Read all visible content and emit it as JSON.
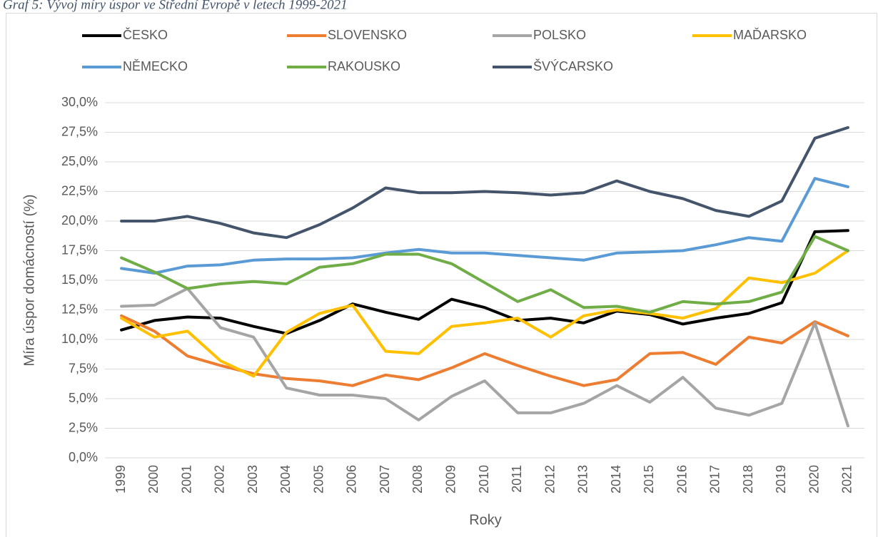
{
  "chart_data": {
    "type": "line",
    "title": "Graf 5: Vývoj míry úspor ve Střední Evropě v letech 1999-2021",
    "x_label": "Roky",
    "y_label": "Míra úspor domácností (%)",
    "categories": [
      "1999",
      "2000",
      "2001",
      "2002",
      "2003",
      "2004",
      "2005",
      "2006",
      "2007",
      "2008",
      "2009",
      "2010",
      "2011",
      "2012",
      "2013",
      "2014",
      "2015",
      "2016",
      "2017",
      "2018",
      "2019",
      "2020",
      "2021"
    ],
    "ylim": [
      0,
      30
    ],
    "yticks": [
      {
        "value": 0,
        "label": "0,0%"
      },
      {
        "value": 2.5,
        "label": "2,5%"
      },
      {
        "value": 5,
        "label": "5,0%"
      },
      {
        "value": 7.5,
        "label": "7,5%"
      },
      {
        "value": 10,
        "label": "10,0%"
      },
      {
        "value": 12.5,
        "label": "12,5%"
      },
      {
        "value": 15,
        "label": "15,0%"
      },
      {
        "value": 17.5,
        "label": "17,5%"
      },
      {
        "value": 20,
        "label": "20,0%"
      },
      {
        "value": 22.5,
        "label": "22,5%"
      },
      {
        "value": 25,
        "label": "25,0%"
      },
      {
        "value": 27.5,
        "label": "27,5%"
      },
      {
        "value": 30,
        "label": "30,0%"
      }
    ],
    "grid": true,
    "legend": "top",
    "series": [
      {
        "name": "ČESKO",
        "color": "#000000",
        "values": [
          10.8,
          11.6,
          11.9,
          11.8,
          11.1,
          10.5,
          11.6,
          13.0,
          12.3,
          11.7,
          13.4,
          12.7,
          11.6,
          11.8,
          11.4,
          12.4,
          12.1,
          11.3,
          11.8,
          12.2,
          13.1,
          19.1,
          19.2
        ]
      },
      {
        "name": "SLOVENSKO",
        "color": "#ed7d31",
        "values": [
          12.0,
          10.7,
          8.6,
          7.8,
          7.1,
          6.7,
          6.5,
          6.1,
          7.0,
          6.6,
          7.6,
          8.8,
          7.8,
          6.9,
          6.1,
          6.6,
          8.8,
          8.9,
          7.9,
          10.2,
          9.7,
          11.5,
          10.3
        ]
      },
      {
        "name": "POLSKO",
        "color": "#a5a5a5",
        "values": [
          12.8,
          12.9,
          14.3,
          11.0,
          10.2,
          5.9,
          5.3,
          5.3,
          5.0,
          3.2,
          5.2,
          6.5,
          3.8,
          3.8,
          4.6,
          6.1,
          4.7,
          6.8,
          4.2,
          3.6,
          4.6,
          11.4,
          2.7
        ]
      },
      {
        "name": "MAĎARSKO",
        "color": "#ffc000",
        "values": [
          11.8,
          10.2,
          10.7,
          8.2,
          6.9,
          10.6,
          12.2,
          12.9,
          9.0,
          8.8,
          11.1,
          11.4,
          11.8,
          10.2,
          12.0,
          12.5,
          12.2,
          11.8,
          12.6,
          15.2,
          14.8,
          15.6,
          17.5
        ]
      },
      {
        "name": "NĚMECKO",
        "color": "#5b9bd5",
        "values": [
          16.0,
          15.6,
          16.2,
          16.3,
          16.7,
          16.8,
          16.8,
          16.9,
          17.3,
          17.6,
          17.3,
          17.3,
          17.1,
          16.9,
          16.7,
          17.3,
          17.4,
          17.5,
          18.0,
          18.6,
          18.3,
          23.6,
          22.9
        ]
      },
      {
        "name": "RAKOUSKO",
        "color": "#70ad47",
        "values": [
          16.9,
          15.7,
          14.3,
          14.7,
          14.9,
          14.7,
          16.1,
          16.4,
          17.2,
          17.2,
          16.4,
          14.8,
          13.2,
          14.2,
          12.7,
          12.8,
          12.3,
          13.2,
          13.0,
          13.2,
          14.0,
          18.7,
          17.5
        ]
      },
      {
        "name": "ŠVÝCARSKO",
        "color": "#44546a",
        "values": [
          20.0,
          20.0,
          20.4,
          19.8,
          19.0,
          18.6,
          19.7,
          21.1,
          22.8,
          22.4,
          22.4,
          22.5,
          22.4,
          22.2,
          22.4,
          23.4,
          22.5,
          21.9,
          20.9,
          20.4,
          21.7,
          27.0,
          27.9
        ]
      }
    ]
  }
}
